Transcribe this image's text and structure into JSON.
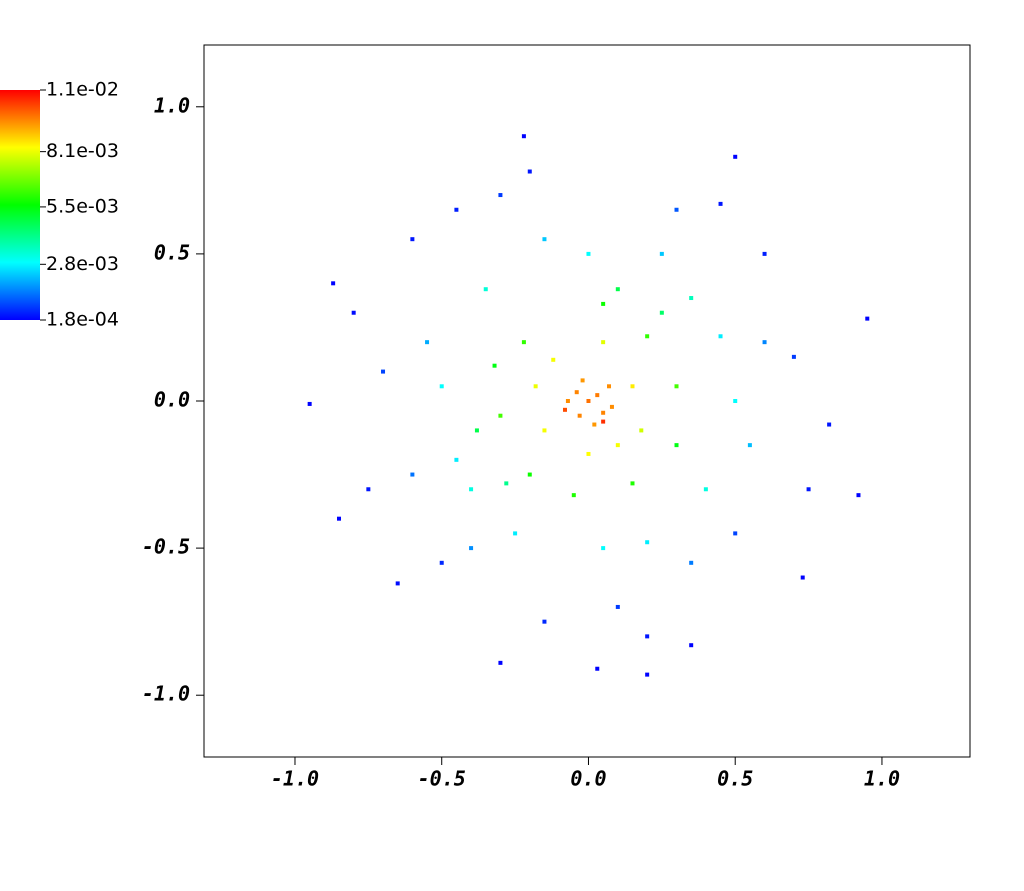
{
  "chart_data": {
    "type": "scatter",
    "xlim": [
      -1.31,
      1.3
    ],
    "ylim": [
      -1.21,
      1.21
    ],
    "xticks": [
      {
        "value": -1,
        "label": "-1.0"
      },
      {
        "value": -0.5,
        "label": "-0.5"
      },
      {
        "value": 0,
        "label": "0.0"
      },
      {
        "value": 0.5,
        "label": "0.5"
      },
      {
        "value": 1,
        "label": "1.0"
      }
    ],
    "yticks": [
      {
        "value": -1,
        "label": "-1.0"
      },
      {
        "value": -0.5,
        "label": "-0.5"
      },
      {
        "value": 0,
        "label": "0.0"
      },
      {
        "value": 0.5,
        "label": "0.5"
      },
      {
        "value": 1,
        "label": "1.0"
      }
    ],
    "colormap": [
      "#0000ff",
      "#00ffff",
      "#00ff00",
      "#ffff00",
      "#ff0000"
    ],
    "clim": [
      0.00018,
      0.011
    ],
    "colorbar_ticks": [
      {
        "value": 0.011,
        "label": "1.1e-02"
      },
      {
        "value": 0.0081,
        "label": "8.1e-03"
      },
      {
        "value": 0.0055,
        "label": "5.5e-03"
      },
      {
        "value": 0.0028,
        "label": "2.8e-03"
      },
      {
        "value": 0.00018,
        "label": "1.8e-04"
      }
    ],
    "x": [
      0,
      0.03,
      -0.04,
      0.05,
      -0.03,
      0.07,
      -0.07,
      0.02,
      -0.02,
      0.08,
      0.05,
      -0.08,
      0.15,
      -0.15,
      0.1,
      -0.12,
      0.18,
      -0.18,
      0,
      0.05,
      0.3,
      -0.3,
      0.2,
      -0.22,
      0.15,
      -0.2,
      0.05,
      -0.05,
      0.3,
      -0.32,
      0.25,
      -0.28,
      0.1,
      -0.38,
      0.5,
      -0.5,
      0.35,
      -0.35,
      0.4,
      -0.4,
      0,
      0.05,
      0.2,
      -0.25,
      0.45,
      -0.45,
      0.55,
      -0.55,
      0.25,
      -0.15,
      0.6,
      -0.6,
      0.35,
      -0.4,
      0.7,
      -0.7,
      0.3,
      -0.3,
      0.5,
      -0.5,
      0.1,
      -0.15,
      0.6,
      -0.6,
      0.75,
      -0.75,
      0.2,
      -0.2,
      0.45,
      -0.45,
      0.95,
      -0.95,
      -0.22,
      0.2,
      0.5,
      -0.85,
      0.92,
      0.73,
      -0.87,
      0.03,
      0.35,
      -0.3,
      -0.65,
      0.82,
      -0.8
    ],
    "y": [
      0,
      0.02,
      0.03,
      -0.04,
      -0.05,
      0.05,
      0,
      -0.08,
      0.07,
      -0.02,
      -0.07,
      -0.03,
      0.05,
      -0.1,
      -0.15,
      0.14,
      -0.1,
      0.05,
      -0.18,
      0.2,
      0.05,
      -0.05,
      0.22,
      0.2,
      -0.28,
      -0.25,
      0.33,
      -0.32,
      -0.15,
      0.12,
      0.3,
      -0.28,
      0.38,
      -0.1,
      0,
      0.05,
      0.35,
      0.38,
      -0.3,
      -0.3,
      0.5,
      -0.5,
      -0.48,
      -0.45,
      0.22,
      -0.2,
      -0.15,
      0.2,
      0.5,
      0.55,
      0.2,
      -0.25,
      -0.55,
      -0.5,
      0.15,
      0.1,
      0.65,
      0.7,
      -0.45,
      -0.55,
      -0.7,
      -0.75,
      0.5,
      0.55,
      -0.3,
      -0.3,
      -0.8,
      0.78,
      0.67,
      0.65,
      0.28,
      -0.01,
      0.9,
      -0.93,
      0.83,
      -0.4,
      -0.32,
      -0.6,
      0.4,
      -0.91,
      -0.83,
      -0.89,
      -0.62,
      -0.08,
      0.3
    ],
    "values": [
      0.0098,
      0.0097,
      0.0096,
      0.0096,
      0.0096,
      0.0095,
      0.0095,
      0.0094,
      0.0094,
      0.0095,
      0.0105,
      0.0102,
      0.0085,
      0.0082,
      0.0082,
      0.0082,
      0.0078,
      0.0081,
      0.0083,
      0.008,
      0.0063,
      0.0063,
      0.0061,
      0.0061,
      0.0059,
      0.0057,
      0.0057,
      0.0059,
      0.0054,
      0.0054,
      0.0045,
      0.0041,
      0.0048,
      0.0048,
      0.0029,
      0.0029,
      0.0036,
      0.0033,
      0.0032,
      0.0032,
      0.0029,
      0.0029,
      0.0027,
      0.0027,
      0.0027,
      0.0027,
      0.0022,
      0.002,
      0.0023,
      0.0023,
      0.0016,
      0.0014,
      0.0015,
      0.0017,
      0.0008,
      0.0009,
      0.0011,
      0.0008,
      0.0009,
      0.0006,
      0.0008,
      0.0006,
      0.0005,
      0.0004,
      0.0004,
      0.0004,
      0.0004,
      0.0004,
      0.0004,
      0.0005,
      0.0002,
      0.0002,
      0.0002,
      0.0002,
      0.0002,
      0.0002,
      0.0002,
      0.0002,
      0.0002,
      0.0002,
      0.0002,
      0.0002,
      0.0003,
      0.0004,
      0.0003
    ]
  }
}
